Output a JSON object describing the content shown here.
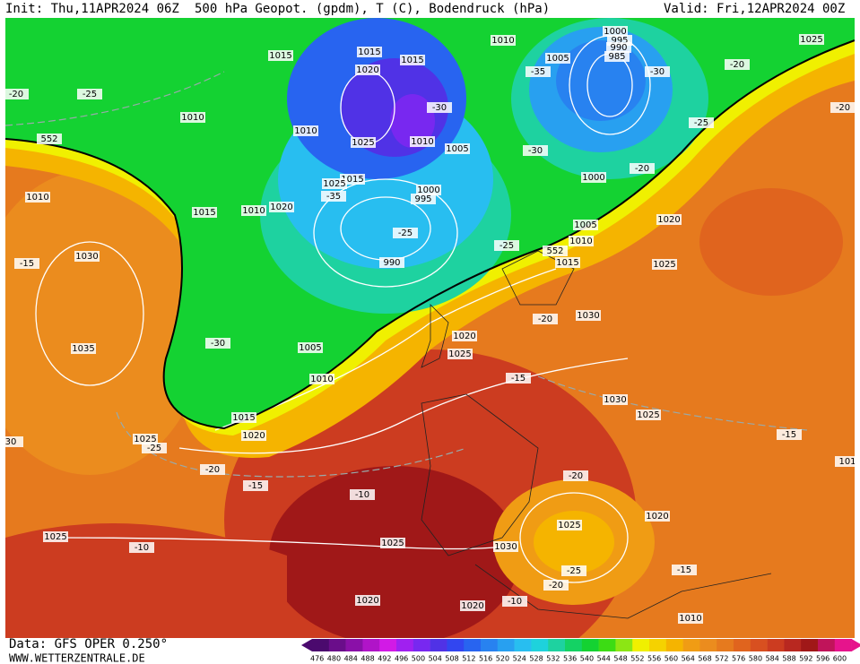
{
  "header": {
    "init": "Init: Thu,11APR2024 06Z",
    "title": "500 hPa Geopot. (gpdm), T (C), Bodendruck (hPa)",
    "valid": "Valid: Fri,12APR2024 00Z"
  },
  "footer": {
    "data": "Data: GFS OPER 0.250°",
    "site": "WWW.WETTERZENTRALE.DE"
  },
  "colorbar": {
    "values": [
      476,
      480,
      484,
      488,
      492,
      496,
      500,
      504,
      508,
      512,
      516,
      520,
      524,
      528,
      532,
      536,
      540,
      544,
      548,
      552,
      556,
      560,
      564,
      568,
      572,
      576,
      580,
      584,
      588,
      592,
      596,
      600
    ],
    "colors": [
      "#4b0a6e",
      "#6a0d8a",
      "#8a10a8",
      "#b014c8",
      "#d21ae6",
      "#a020f0",
      "#7828f0",
      "#5032e6",
      "#3246f0",
      "#2864f0",
      "#2882f0",
      "#28a0f0",
      "#28bef0",
      "#1ed2dc",
      "#1ed2a0",
      "#14d264",
      "#14d232",
      "#3cdc14",
      "#8ce614",
      "#f0f000",
      "#f5d200",
      "#f5b400",
      "#f09c14",
      "#eb8c1e",
      "#e67a1e",
      "#e0641e",
      "#d85020",
      "#cc3c20",
      "#b82820",
      "#a01818",
      "#c0145a",
      "#e6148c"
    ]
  },
  "labels": [
    "1015",
    "1015",
    "1015",
    "1010",
    "1005",
    "1000",
    "995",
    "990",
    "985",
    "-30",
    "-20",
    "1025",
    "-20",
    "-25",
    "1010",
    "1020",
    "-30",
    "1010",
    "1025",
    "1010",
    "1005",
    "-35",
    "-25",
    "-20",
    "552",
    "-30",
    "-20",
    "1000",
    "1015",
    "1025",
    "-35",
    "1000",
    "995",
    "1010",
    "1015",
    "1010",
    "1020",
    "-25",
    "1005",
    "1020",
    "1010",
    "552",
    "-25",
    "1015",
    "1025",
    "990",
    "-15",
    "1030",
    "-20",
    "1030",
    "-30",
    "1005",
    "1035",
    "1020",
    "1025",
    "1010",
    "-15",
    "1030",
    "1025",
    "1015",
    "1020",
    "1025",
    "-25",
    "-15",
    "30",
    "-20",
    "-15",
    "-20",
    "101",
    "-10",
    "1020",
    "1025",
    "1025",
    "-10",
    "1025",
    "1030",
    "-25",
    "-20",
    "-15",
    "1020",
    "1020",
    "-10",
    "1010"
  ]
}
